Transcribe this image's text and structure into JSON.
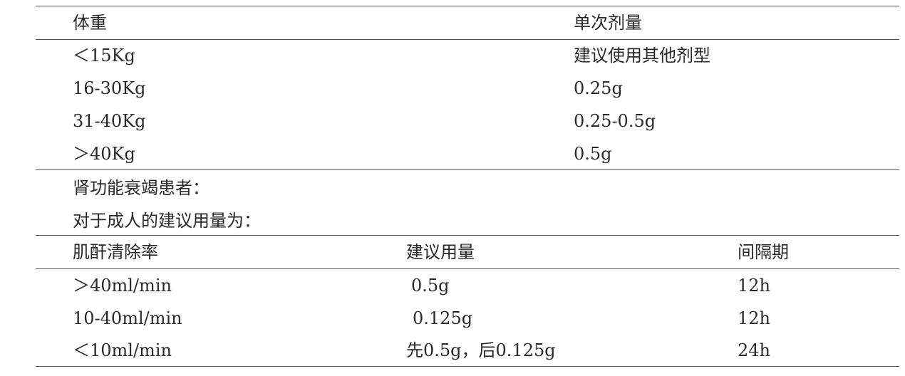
{
  "weight_table": {
    "headers": [
      "体重",
      "单次剂量"
    ],
    "rows": [
      [
        "＜15Kg",
        "建议使用其他剂型"
      ],
      [
        "16-30Kg",
        "0.25g"
      ],
      [
        "31-40Kg",
        "0.25-0.5g"
      ],
      [
        "＞40Kg",
        "0.5g"
      ]
    ]
  },
  "notes": [
    "肾功能衰竭患者：",
    "对于成人的建议用量为："
  ],
  "renal_table": {
    "headers": [
      "肌酐清除率",
      "建议用量",
      "间隔期"
    ],
    "rows": [
      [
        "＞40ml/min",
        "0.5g",
        "12h"
      ],
      [
        "10-40ml/min",
        "0.125g",
        "12h"
      ],
      [
        "＜10ml/min",
        "先0.5g，后0.125g",
        "24h"
      ]
    ]
  }
}
